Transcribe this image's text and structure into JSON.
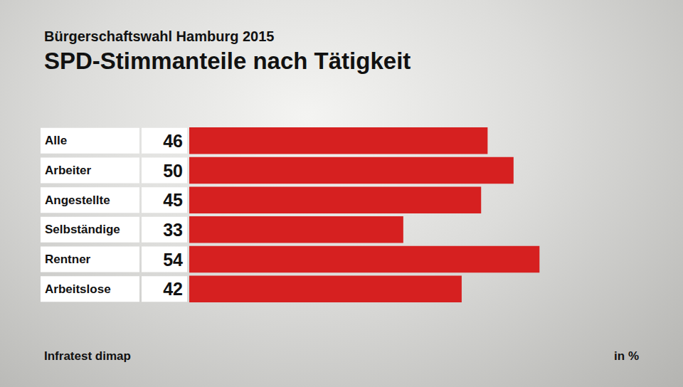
{
  "chart_data": {
    "type": "bar",
    "orientation": "horizontal",
    "title": "Bürgerschaftswahl Hamburg 2015",
    "subtitle": "SPD-Stimmanteile nach Tätigkeit",
    "categories": [
      "Alle",
      "Arbeiter",
      "Angestellte",
      "Selbständige",
      "Rentner",
      "Arbeitslose"
    ],
    "values": [
      46,
      50,
      45,
      33,
      54,
      42
    ],
    "color": "#d62020",
    "xlim": [
      0,
      60
    ],
    "xticks": [
      0,
      60
    ],
    "grid": false,
    "data_labels": true,
    "tick_labels": "y",
    "source": "Infratest dimap",
    "unit_note": "in %"
  }
}
